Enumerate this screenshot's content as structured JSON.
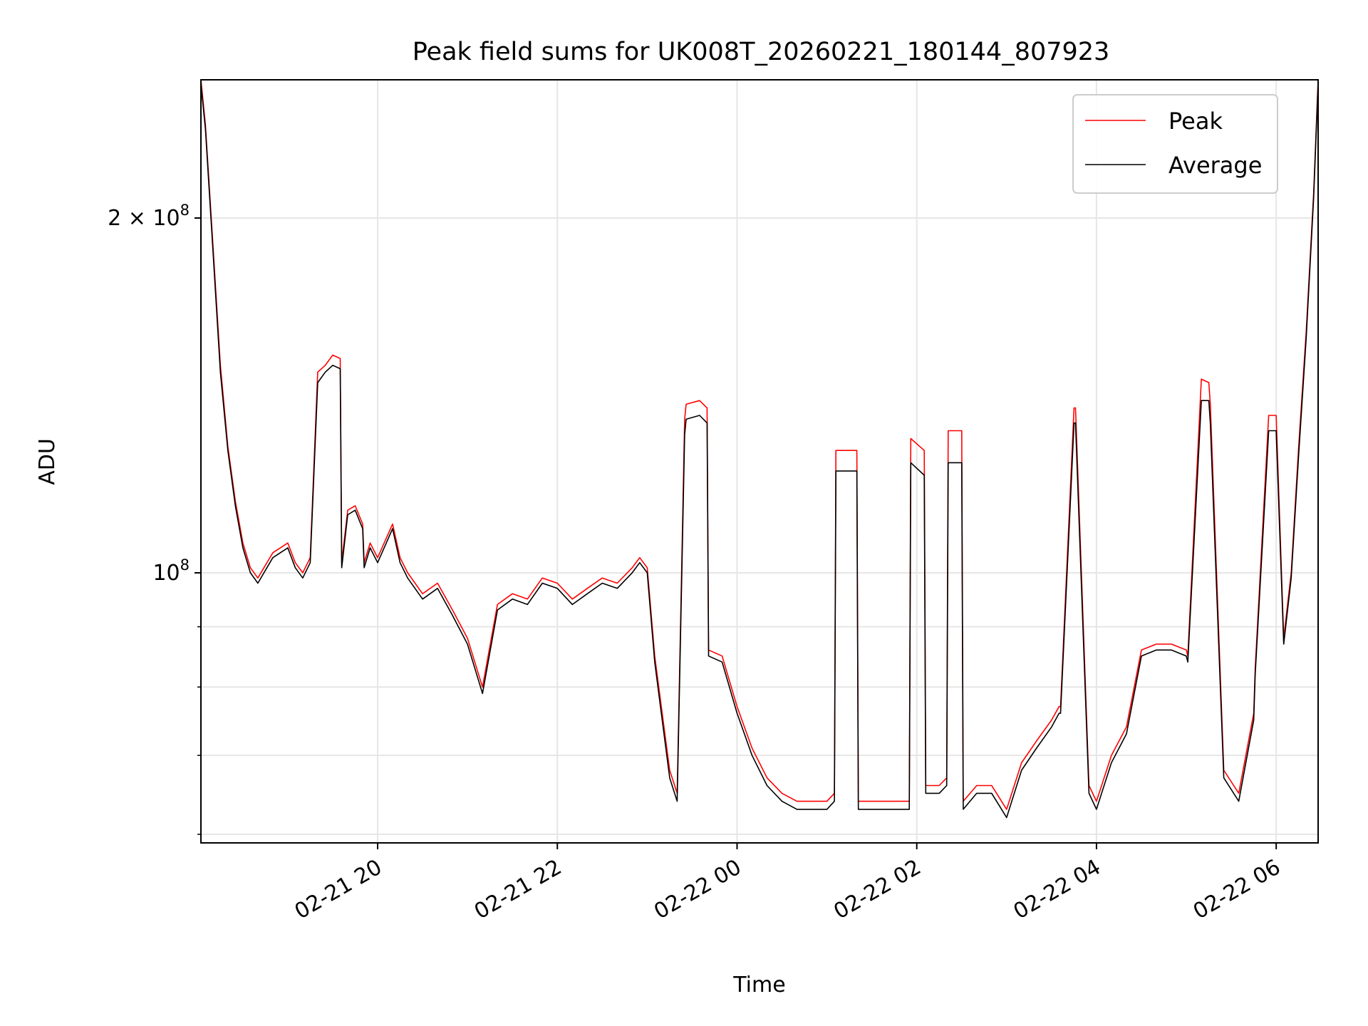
{
  "chart_data": {
    "type": "line",
    "title": "Peak field sums for UK008T_20260221_180144_807923",
    "xlabel": "Time",
    "ylabel": "ADU",
    "yscale": "log",
    "ylim": [
      59000000,
      262000000
    ],
    "x_range": [
      "2026-02-21 18:02",
      "2026-02-22 06:28"
    ],
    "grid": true,
    "legend_position": "top-right",
    "x_ticks": [
      {
        "value": "2026-02-21 20:00",
        "label": "02-21 20"
      },
      {
        "value": "2026-02-21 22:00",
        "label": "02-21 22"
      },
      {
        "value": "2026-02-22 00:00",
        "label": "02-22 00"
      },
      {
        "value": "2026-02-22 02:00",
        "label": "02-22 02"
      },
      {
        "value": "2026-02-22 04:00",
        "label": "02-22 04"
      },
      {
        "value": "2026-02-22 06:00",
        "label": "02-22 06"
      }
    ],
    "y_major_ticks": [
      {
        "value": 100000000,
        "base": "10",
        "exp": "8",
        "coef": ""
      },
      {
        "value": 200000000,
        "base": "10",
        "exp": "8",
        "coef": "2 × "
      }
    ],
    "y_minor_ticks": [
      60000000,
      70000000,
      80000000,
      90000000
    ],
    "series": [
      {
        "name": "Peak",
        "color": "#ff0000",
        "x": [
          "2026-02-21 18:02",
          "2026-02-21 18:05",
          "2026-02-21 18:10",
          "2026-02-21 18:15",
          "2026-02-21 18:20",
          "2026-02-21 18:25",
          "2026-02-21 18:30",
          "2026-02-21 18:35",
          "2026-02-21 18:40",
          "2026-02-21 18:50",
          "2026-02-21 19:00",
          "2026-02-21 19:05",
          "2026-02-21 19:10",
          "2026-02-21 19:15",
          "2026-02-21 19:20",
          "2026-02-21 19:25",
          "2026-02-21 19:30",
          "2026-02-21 19:35",
          "2026-02-21 19:36",
          "2026-02-21 19:40",
          "2026-02-21 19:45",
          "2026-02-21 19:50",
          "2026-02-21 19:51",
          "2026-02-21 19:55",
          "2026-02-21 20:00",
          "2026-02-21 20:10",
          "2026-02-21 20:15",
          "2026-02-21 20:20",
          "2026-02-21 20:30",
          "2026-02-21 20:40",
          "2026-02-21 20:50",
          "2026-02-21 21:00",
          "2026-02-21 21:10",
          "2026-02-21 21:20",
          "2026-02-21 21:30",
          "2026-02-21 21:40",
          "2026-02-21 21:50",
          "2026-02-21 22:00",
          "2026-02-21 22:10",
          "2026-02-21 22:20",
          "2026-02-21 22:30",
          "2026-02-21 22:40",
          "2026-02-21 22:50",
          "2026-02-21 22:55",
          "2026-02-21 23:00",
          "2026-02-21 23:05",
          "2026-02-21 23:10",
          "2026-02-21 23:15",
          "2026-02-21 23:20",
          "2026-02-21 23:25",
          "2026-02-21 23:26",
          "2026-02-21 23:35",
          "2026-02-21 23:40",
          "2026-02-21 23:41",
          "2026-02-21 23:50",
          "2026-02-22 00:00",
          "2026-02-22 00:10",
          "2026-02-22 00:20",
          "2026-02-22 00:30",
          "2026-02-22 00:40",
          "2026-02-22 00:50",
          "2026-02-22 01:00",
          "2026-02-22 01:05",
          "2026-02-22 01:06",
          "2026-02-22 01:20",
          "2026-02-22 01:21",
          "2026-02-22 01:30",
          "2026-02-22 01:40",
          "2026-02-22 01:50",
          "2026-02-22 01:55",
          "2026-02-22 01:56",
          "2026-02-22 02:05",
          "2026-02-22 02:06",
          "2026-02-22 02:15",
          "2026-02-22 02:20",
          "2026-02-22 02:21",
          "2026-02-22 02:30",
          "2026-02-22 02:31",
          "2026-02-22 02:40",
          "2026-02-22 02:50",
          "2026-02-22 03:00",
          "2026-02-22 03:10",
          "2026-02-22 03:20",
          "2026-02-22 03:30",
          "2026-02-22 03:35",
          "2026-02-22 03:36",
          "2026-02-22 03:45",
          "2026-02-22 03:46",
          "2026-02-22 03:55",
          "2026-02-22 04:00",
          "2026-02-22 04:10",
          "2026-02-22 04:20",
          "2026-02-22 04:30",
          "2026-02-22 04:40",
          "2026-02-22 04:50",
          "2026-02-22 05:00",
          "2026-02-22 05:01",
          "2026-02-22 05:10",
          "2026-02-22 05:15",
          "2026-02-22 05:16",
          "2026-02-22 05:25",
          "2026-02-22 05:35",
          "2026-02-22 05:45",
          "2026-02-22 05:46",
          "2026-02-22 05:55",
          "2026-02-22 06:00",
          "2026-02-22 06:05",
          "2026-02-22 06:10",
          "2026-02-22 06:15",
          "2026-02-22 06:20",
          "2026-02-22 06:25",
          "2026-02-22 06:28"
        ],
        "y": [
          262000000,
          240000000,
          190000000,
          150000000,
          128000000,
          115000000,
          106000000,
          101000000,
          99000000,
          104000000,
          106000000,
          102000000,
          100000000,
          103000000,
          148000000,
          150000000,
          153000000,
          152000000,
          102000000,
          113000000,
          114000000,
          110000000,
          102000000,
          106000000,
          103000000,
          110000000,
          103000000,
          100000000,
          96000000,
          98000000,
          93000000,
          88000000,
          80000000,
          94000000,
          96000000,
          95000000,
          99000000,
          98000000,
          95000000,
          97000000,
          99000000,
          98000000,
          101000000,
          103000000,
          101000000,
          85000000,
          76000000,
          68000000,
          65000000,
          135000000,
          139000000,
          140000000,
          138000000,
          86000000,
          85000000,
          77000000,
          71000000,
          67000000,
          65000000,
          64000000,
          64000000,
          64000000,
          65000000,
          127000000,
          127000000,
          64000000,
          64000000,
          64000000,
          64000000,
          64000000,
          130000000,
          127000000,
          66000000,
          66000000,
          67000000,
          132000000,
          132000000,
          64000000,
          66000000,
          66000000,
          63000000,
          69000000,
          72000000,
          75000000,
          77000000,
          77000000,
          138000000,
          138000000,
          66000000,
          64000000,
          70000000,
          74000000,
          86000000,
          87000000,
          87000000,
          86000000,
          85000000,
          146000000,
          145000000,
          139000000,
          68000000,
          65000000,
          76000000,
          83000000,
          136000000,
          136000000,
          88000000,
          100000000,
          128000000,
          160000000,
          210000000,
          262000000
        ]
      },
      {
        "name": "Average",
        "color": "#000000",
        "x": [
          "2026-02-21 18:02",
          "2026-02-21 18:05",
          "2026-02-21 18:10",
          "2026-02-21 18:15",
          "2026-02-21 18:20",
          "2026-02-21 18:25",
          "2026-02-21 18:30",
          "2026-02-21 18:35",
          "2026-02-21 18:40",
          "2026-02-21 18:50",
          "2026-02-21 19:00",
          "2026-02-21 19:05",
          "2026-02-21 19:10",
          "2026-02-21 19:15",
          "2026-02-21 19:20",
          "2026-02-21 19:25",
          "2026-02-21 19:30",
          "2026-02-21 19:35",
          "2026-02-21 19:36",
          "2026-02-21 19:40",
          "2026-02-21 19:45",
          "2026-02-21 19:50",
          "2026-02-21 19:51",
          "2026-02-21 19:55",
          "2026-02-21 20:00",
          "2026-02-21 20:10",
          "2026-02-21 20:15",
          "2026-02-21 20:20",
          "2026-02-21 20:30",
          "2026-02-21 20:40",
          "2026-02-21 20:50",
          "2026-02-21 21:00",
          "2026-02-21 21:10",
          "2026-02-21 21:20",
          "2026-02-21 21:30",
          "2026-02-21 21:40",
          "2026-02-21 21:50",
          "2026-02-21 22:00",
          "2026-02-21 22:10",
          "2026-02-21 22:20",
          "2026-02-21 22:30",
          "2026-02-21 22:40",
          "2026-02-21 22:50",
          "2026-02-21 22:55",
          "2026-02-21 23:00",
          "2026-02-21 23:05",
          "2026-02-21 23:10",
          "2026-02-21 23:15",
          "2026-02-21 23:20",
          "2026-02-21 23:25",
          "2026-02-21 23:26",
          "2026-02-21 23:35",
          "2026-02-21 23:40",
          "2026-02-21 23:41",
          "2026-02-21 23:50",
          "2026-02-22 00:00",
          "2026-02-22 00:10",
          "2026-02-22 00:20",
          "2026-02-22 00:30",
          "2026-02-22 00:40",
          "2026-02-22 00:50",
          "2026-02-22 01:00",
          "2026-02-22 01:05",
          "2026-02-22 01:06",
          "2026-02-22 01:20",
          "2026-02-22 01:21",
          "2026-02-22 01:30",
          "2026-02-22 01:40",
          "2026-02-22 01:50",
          "2026-02-22 01:55",
          "2026-02-22 01:56",
          "2026-02-22 02:05",
          "2026-02-22 02:06",
          "2026-02-22 02:15",
          "2026-02-22 02:20",
          "2026-02-22 02:21",
          "2026-02-22 02:30",
          "2026-02-22 02:31",
          "2026-02-22 02:40",
          "2026-02-22 02:50",
          "2026-02-22 03:00",
          "2026-02-22 03:10",
          "2026-02-22 03:20",
          "2026-02-22 03:30",
          "2026-02-22 03:35",
          "2026-02-22 03:36",
          "2026-02-22 03:45",
          "2026-02-22 03:46",
          "2026-02-22 03:55",
          "2026-02-22 04:00",
          "2026-02-22 04:10",
          "2026-02-22 04:20",
          "2026-02-22 04:30",
          "2026-02-22 04:40",
          "2026-02-22 04:50",
          "2026-02-22 05:00",
          "2026-02-22 05:01",
          "2026-02-22 05:10",
          "2026-02-22 05:15",
          "2026-02-22 05:16",
          "2026-02-22 05:25",
          "2026-02-22 05:35",
          "2026-02-22 05:45",
          "2026-02-22 05:46",
          "2026-02-22 05:55",
          "2026-02-22 06:00",
          "2026-02-22 06:05",
          "2026-02-22 06:10",
          "2026-02-22 06:15",
          "2026-02-22 06:20",
          "2026-02-22 06:25",
          "2026-02-22 06:28"
        ],
        "y": [
          260000000,
          238000000,
          188000000,
          148000000,
          127000000,
          114000000,
          105000000,
          100000000,
          98000000,
          103000000,
          105000000,
          101000000,
          99000000,
          102000000,
          145000000,
          148000000,
          150000000,
          149000000,
          101000000,
          112000000,
          113000000,
          109000000,
          101000000,
          105000000,
          102000000,
          109000000,
          102000000,
          99000000,
          95000000,
          97000000,
          92000000,
          87000000,
          79000000,
          93000000,
          95000000,
          94000000,
          98000000,
          97000000,
          94000000,
          96000000,
          98000000,
          97000000,
          100000000,
          102000000,
          100000000,
          84000000,
          75000000,
          67000000,
          64000000,
          131000000,
          135000000,
          136000000,
          134000000,
          85000000,
          84000000,
          76000000,
          70000000,
          66000000,
          64000000,
          63000000,
          63000000,
          63000000,
          64000000,
          122000000,
          122000000,
          63000000,
          63000000,
          63000000,
          63000000,
          63000000,
          124000000,
          121000000,
          65000000,
          65000000,
          66000000,
          124000000,
          124000000,
          63000000,
          65000000,
          65000000,
          62000000,
          68000000,
          71000000,
          74000000,
          76000000,
          76000000,
          134000000,
          134000000,
          65000000,
          63000000,
          69000000,
          73000000,
          85000000,
          86000000,
          86000000,
          85000000,
          84000000,
          140000000,
          140000000,
          134000000,
          67000000,
          64000000,
          75000000,
          82000000,
          132000000,
          132000000,
          87000000,
          99000000,
          126000000,
          158000000,
          208000000,
          260000000
        ]
      }
    ]
  }
}
